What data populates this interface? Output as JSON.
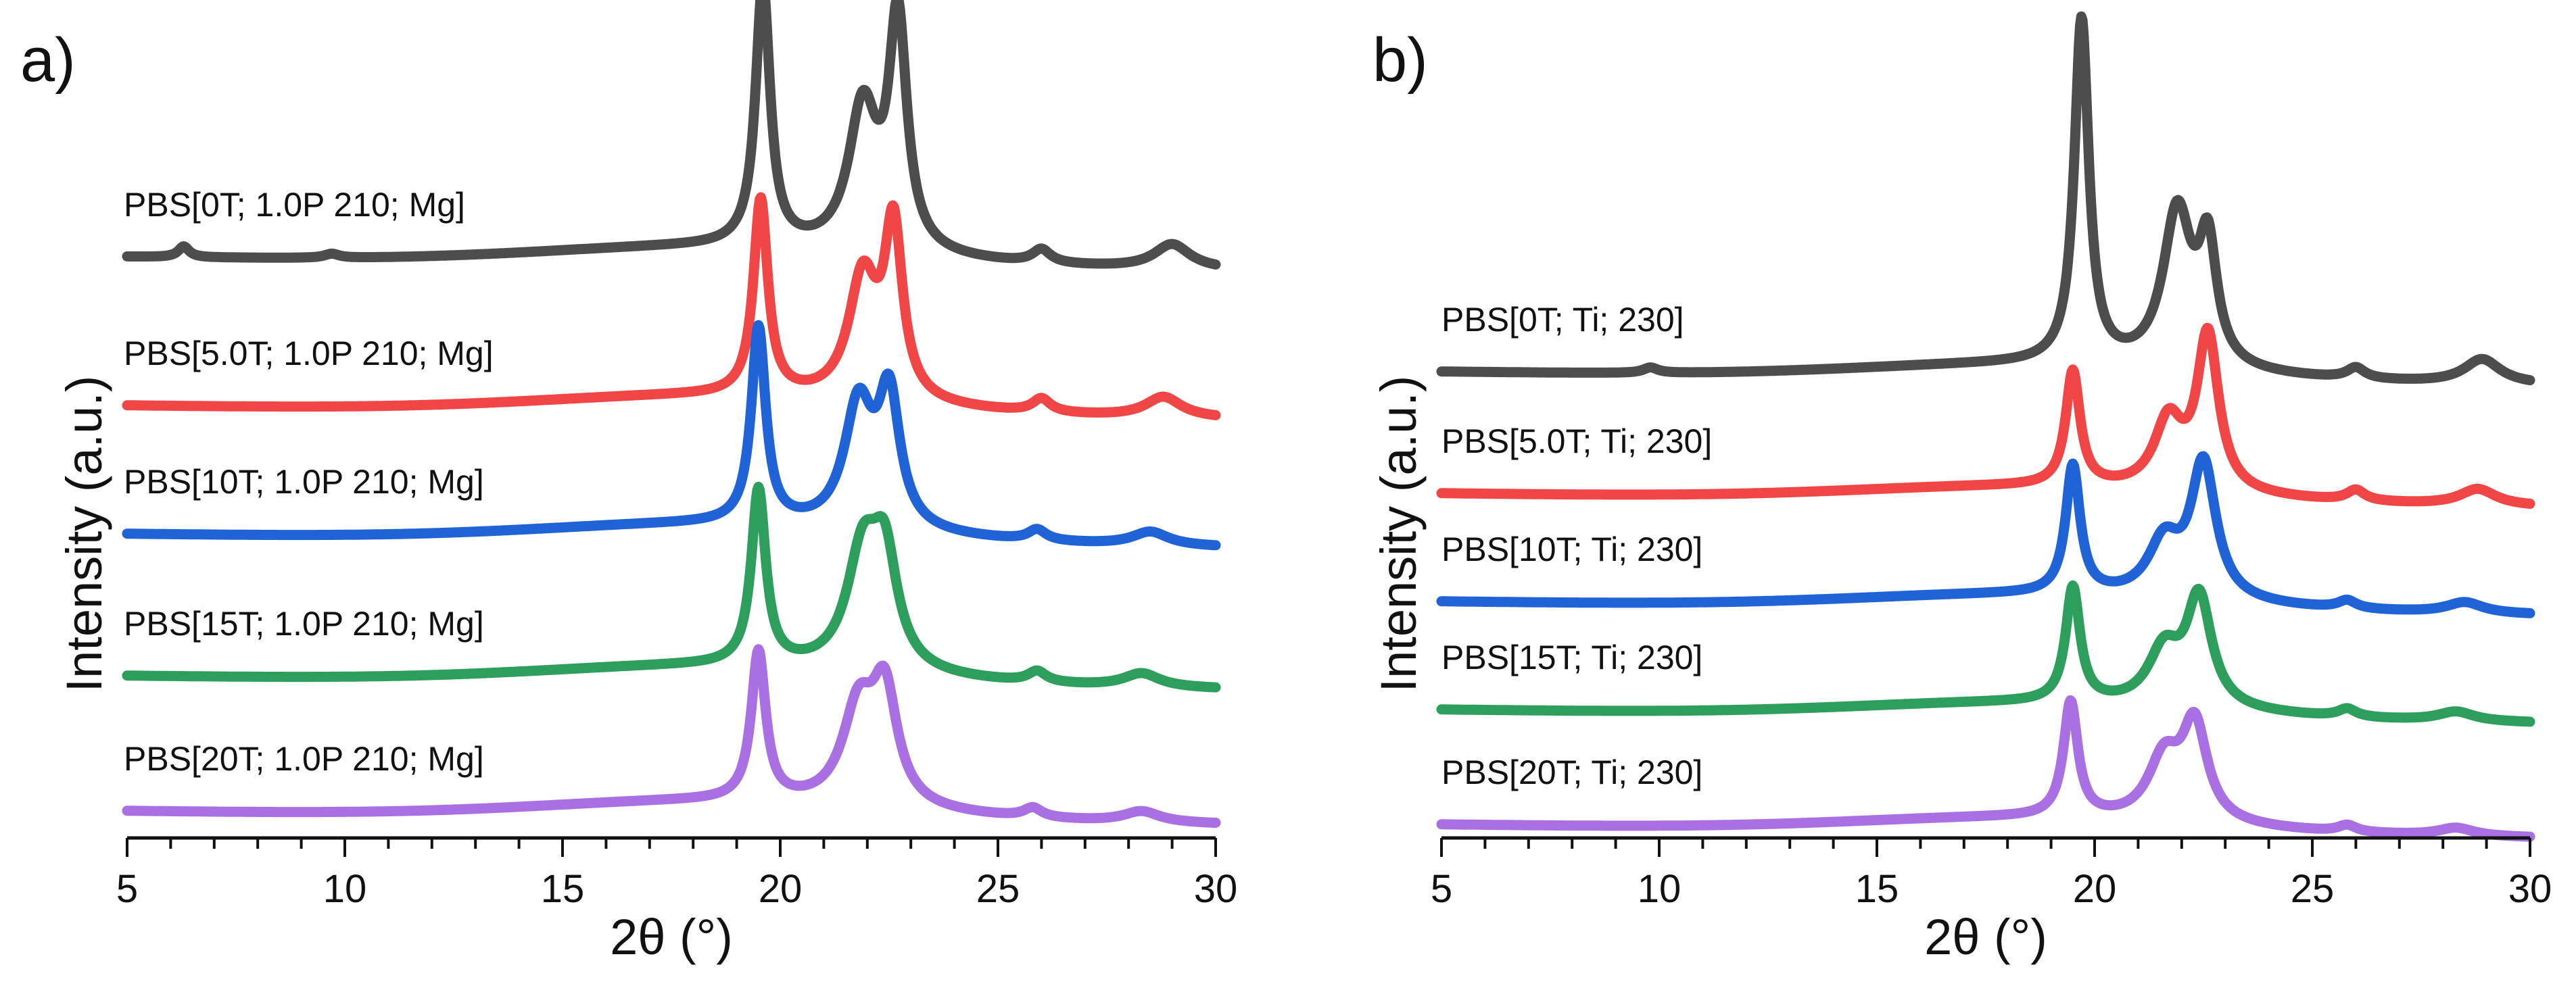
{
  "chart_data": [
    {
      "type": "line",
      "panel": "a)",
      "xlabel": "2θ (°)",
      "ylabel": "Intensity (a.u.)",
      "xlim": [
        5,
        30
      ],
      "xticks": [
        5,
        10,
        15,
        20,
        25,
        30
      ],
      "ylim": [
        0,
        6
      ],
      "series": [
        {
          "name": "PBS[0T; 1.0P 210; Mg]",
          "color": "#4d4d4d",
          "baseline": 4.3,
          "peaks": [
            [
              6.3,
              0.08,
              0.15
            ],
            [
              9.7,
              0.03,
              0.2
            ],
            [
              19.6,
              1.95,
              0.2
            ],
            [
              21.9,
              1.05,
              0.4
            ],
            [
              22.7,
              1.7,
              0.25
            ],
            [
              26.0,
              0.1,
              0.25
            ],
            [
              29.0,
              0.18,
              0.5
            ]
          ],
          "slope": -0.1,
          "bump": 0.12
        },
        {
          "name": "PBS[5.0T; 1.0P 210; Mg]",
          "color": "#f04646",
          "baseline": 3.2,
          "peaks": [
            [
              19.55,
              1.45,
              0.2
            ],
            [
              21.9,
              0.9,
              0.4
            ],
            [
              22.6,
              1.25,
              0.25
            ],
            [
              26.0,
              0.1,
              0.25
            ],
            [
              28.8,
              0.15,
              0.5
            ]
          ],
          "slope": -0.1,
          "bump": 0.12
        },
        {
          "name": "PBS[10T; 1.0P 210; Mg]",
          "color": "#1f63d6",
          "baseline": 2.25,
          "peaks": [
            [
              19.5,
              1.45,
              0.2
            ],
            [
              21.8,
              0.9,
              0.4
            ],
            [
              22.5,
              0.95,
              0.3
            ],
            [
              25.9,
              0.08,
              0.25
            ],
            [
              28.5,
              0.1,
              0.5
            ]
          ],
          "slope": -0.1,
          "bump": 0.12
        },
        {
          "name": "PBS[15T; 1.0P 210; Mg]",
          "color": "#2e9e5c",
          "baseline": 1.2,
          "peaks": [
            [
              19.5,
              1.3,
              0.2
            ],
            [
              21.9,
              0.85,
              0.45
            ],
            [
              22.4,
              0.75,
              0.35
            ],
            [
              25.9,
              0.08,
              0.25
            ],
            [
              28.3,
              0.1,
              0.5
            ]
          ],
          "slope": -0.1,
          "bump": 0.12
        },
        {
          "name": "PBS[20T; 1.0P 210; Mg]",
          "color": "#a970e3",
          "baseline": 0.2,
          "peaks": [
            [
              19.5,
              1.1,
              0.2
            ],
            [
              21.8,
              0.7,
              0.45
            ],
            [
              22.4,
              0.8,
              0.35
            ],
            [
              25.8,
              0.07,
              0.25
            ],
            [
              28.3,
              0.08,
              0.5
            ]
          ],
          "slope": -0.1,
          "bump": 0.12
        }
      ]
    },
    {
      "type": "line",
      "panel": "b)",
      "xlabel": "2θ (°)",
      "ylabel": "Intensity (a.u.)",
      "xlim": [
        5,
        30
      ],
      "xticks": [
        5,
        10,
        15,
        20,
        25,
        30
      ],
      "ylim": [
        0,
        6
      ],
      "series": [
        {
          "name": "PBS[0T; Ti; 230]",
          "color": "#4d4d4d",
          "baseline": 3.45,
          "peaks": [
            [
              9.8,
              0.04,
              0.2
            ],
            [
              19.7,
              2.55,
              0.2
            ],
            [
              21.9,
              1.15,
              0.4
            ],
            [
              22.6,
              0.85,
              0.25
            ],
            [
              26.0,
              0.08,
              0.25
            ],
            [
              28.9,
              0.18,
              0.5
            ]
          ],
          "slope": -0.1,
          "bump": 0.1
        },
        {
          "name": "PBS[5.0T; Ti; 230]",
          "color": "#f04646",
          "baseline": 2.55,
          "peaks": [
            [
              19.5,
              0.85,
              0.2
            ],
            [
              21.7,
              0.5,
              0.4
            ],
            [
              22.6,
              1.15,
              0.3
            ],
            [
              26.0,
              0.08,
              0.25
            ],
            [
              28.8,
              0.12,
              0.5
            ]
          ],
          "slope": -0.1,
          "bump": 0.1
        },
        {
          "name": "PBS[10T; Ti; 230]",
          "color": "#1f63d6",
          "baseline": 1.75,
          "peaks": [
            [
              19.5,
              0.95,
              0.2
            ],
            [
              21.6,
              0.4,
              0.45
            ],
            [
              22.5,
              1.0,
              0.35
            ],
            [
              25.8,
              0.06,
              0.25
            ],
            [
              28.5,
              0.08,
              0.5
            ]
          ],
          "slope": -0.1,
          "bump": 0.1
        },
        {
          "name": "PBS[15T; Ti; 230]",
          "color": "#2e9e5c",
          "baseline": 0.95,
          "peaks": [
            [
              19.5,
              0.85,
              0.2
            ],
            [
              21.6,
              0.4,
              0.45
            ],
            [
              22.4,
              0.8,
              0.35
            ],
            [
              25.8,
              0.06,
              0.25
            ],
            [
              28.3,
              0.07,
              0.5
            ]
          ],
          "slope": -0.1,
          "bump": 0.1
        },
        {
          "name": "PBS[20T; Ti; 230]",
          "color": "#a970e3",
          "baseline": 0.1,
          "peaks": [
            [
              19.45,
              0.85,
              0.2
            ],
            [
              21.6,
              0.45,
              0.45
            ],
            [
              22.3,
              0.7,
              0.35
            ],
            [
              25.8,
              0.05,
              0.25
            ],
            [
              28.3,
              0.06,
              0.5
            ]
          ],
          "slope": -0.1,
          "bump": 0.1
        }
      ]
    }
  ]
}
